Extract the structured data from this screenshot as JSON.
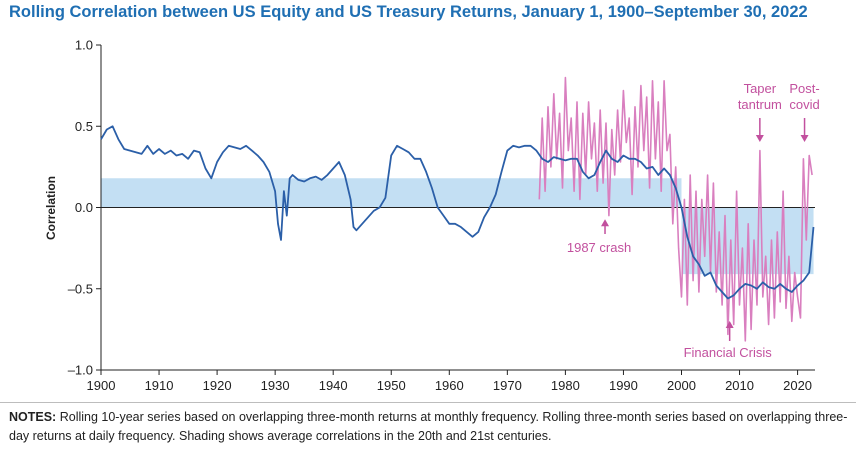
{
  "title": "Rolling Correlation between US Equity and US Treasury Returns, January 1, 1900–September 30, 2022",
  "notes_label": "NOTES:",
  "notes_text": "Rolling 10-year series based on overlapping three-month returns at monthly frequency. Rolling three-month series based on overlapping three-day returns at daily frequency. Shading shows average correlations in the 20th and 21st centuries.",
  "colors": {
    "title": "#1f6fb3",
    "ten_year": "#2b5fa8",
    "three_month": "#d97fbf",
    "shading": "#c3dff3",
    "annotation": "#c2509e"
  },
  "chart_data": {
    "type": "line",
    "title": "Rolling Correlation between US Equity and US Treasury Returns, January 1, 1900–September 30, 2022",
    "xlabel": "",
    "ylabel": "Correlation",
    "xlim": [
      1900,
      2023
    ],
    "ylim": [
      -1.0,
      1.0
    ],
    "x_ticks": [
      1900,
      1910,
      1920,
      1930,
      1940,
      1950,
      1960,
      1970,
      1980,
      1990,
      2000,
      2010,
      2020
    ],
    "y_ticks": [
      1.0,
      0.5,
      0.0,
      -0.5,
      -1.0
    ],
    "y_tick_labels": [
      "1.0",
      "0.5",
      "0.0",
      "–0.5",
      "–1.0"
    ],
    "shading": [
      {
        "from": 1900,
        "to": 2000,
        "value": 0.18
      },
      {
        "from": 2000,
        "to": 2022.75,
        "value": -0.41
      }
    ],
    "series": [
      {
        "name": "Rolling 10-year correlation",
        "x": [
          1900,
          1901,
          1902,
          1903,
          1904,
          1905,
          1906,
          1907,
          1908,
          1909,
          1910,
          1911,
          1912,
          1913,
          1914,
          1915,
          1916,
          1917,
          1918,
          1919,
          1920,
          1921,
          1922,
          1923,
          1924,
          1925,
          1926,
          1927,
          1928,
          1929,
          1930,
          1930.5,
          1931,
          1931.5,
          1932,
          1932.5,
          1933,
          1934,
          1935,
          1936,
          1937,
          1938,
          1939,
          1940,
          1941,
          1942,
          1943,
          1943.5,
          1944,
          1945,
          1946,
          1947,
          1948,
          1949,
          1950,
          1951,
          1952,
          1953,
          1954,
          1955,
          1956,
          1957,
          1958,
          1959,
          1960,
          1961,
          1962,
          1963,
          1964,
          1965,
          1966,
          1967,
          1968,
          1969,
          1970,
          1971,
          1972,
          1973,
          1974,
          1975,
          1976,
          1977,
          1978,
          1979,
          1980,
          1981,
          1982,
          1983,
          1984,
          1985,
          1986,
          1987,
          1988,
          1989,
          1990,
          1991,
          1992,
          1993,
          1994,
          1995,
          1996,
          1997,
          1998,
          1999,
          2000,
          2001,
          2002,
          2003,
          2004,
          2005,
          2006,
          2007,
          2008,
          2009,
          2010,
          2011,
          2012,
          2013,
          2014,
          2015,
          2016,
          2017,
          2018,
          2019,
          2020,
          2021,
          2022,
          2022.75
        ],
        "values": [
          0.42,
          0.48,
          0.5,
          0.42,
          0.36,
          0.35,
          0.34,
          0.33,
          0.38,
          0.33,
          0.36,
          0.33,
          0.35,
          0.32,
          0.33,
          0.3,
          0.35,
          0.34,
          0.24,
          0.18,
          0.28,
          0.34,
          0.38,
          0.37,
          0.36,
          0.38,
          0.35,
          0.32,
          0.28,
          0.22,
          0.1,
          -0.1,
          -0.2,
          0.1,
          -0.05,
          0.18,
          0.2,
          0.17,
          0.16,
          0.18,
          0.19,
          0.17,
          0.2,
          0.24,
          0.28,
          0.2,
          0.05,
          -0.12,
          -0.14,
          -0.1,
          -0.06,
          -0.02,
          0.0,
          0.06,
          0.32,
          0.38,
          0.36,
          0.34,
          0.3,
          0.3,
          0.22,
          0.12,
          0.0,
          -0.05,
          -0.1,
          -0.1,
          -0.12,
          -0.15,
          -0.18,
          -0.15,
          -0.06,
          0.0,
          0.08,
          0.22,
          0.35,
          0.38,
          0.37,
          0.38,
          0.38,
          0.35,
          0.3,
          0.28,
          0.31,
          0.3,
          0.29,
          0.3,
          0.3,
          0.22,
          0.18,
          0.2,
          0.28,
          0.35,
          0.3,
          0.28,
          0.32,
          0.3,
          0.3,
          0.28,
          0.24,
          0.25,
          0.2,
          0.24,
          0.2,
          0.12,
          0.0,
          -0.18,
          -0.3,
          -0.35,
          -0.42,
          -0.4,
          -0.48,
          -0.52,
          -0.56,
          -0.54,
          -0.5,
          -0.47,
          -0.48,
          -0.5,
          -0.46,
          -0.49,
          -0.5,
          -0.47,
          -0.5,
          -0.52,
          -0.48,
          -0.45,
          -0.4,
          -0.12
        ]
      },
      {
        "name": "Rolling three-month correlation",
        "x": [
          1975.5,
          1976,
          1976.5,
          1977,
          1977.5,
          1978,
          1978.5,
          1979,
          1979.5,
          1980,
          1980.5,
          1981,
          1981.5,
          1982,
          1982.5,
          1983,
          1983.5,
          1984,
          1984.5,
          1985,
          1985.5,
          1986,
          1986.5,
          1987,
          1987.5,
          1988,
          1988.5,
          1989,
          1989.5,
          1990,
          1990.5,
          1991,
          1991.5,
          1992,
          1992.5,
          1993,
          1993.5,
          1994,
          1994.5,
          1995,
          1995.5,
          1996,
          1996.5,
          1997,
          1997.5,
          1998,
          1998.5,
          1999,
          1999.5,
          2000,
          2000.5,
          2001,
          2001.5,
          2002,
          2002.5,
          2003,
          2003.5,
          2004,
          2004.5,
          2005,
          2005.5,
          2006,
          2006.5,
          2007,
          2007.5,
          2008,
          2008.5,
          2009,
          2009.5,
          2010,
          2010.5,
          2011,
          2011.5,
          2012,
          2012.5,
          2013,
          2013.5,
          2014,
          2014.5,
          2015,
          2015.5,
          2016,
          2016.5,
          2017,
          2017.5,
          2018,
          2018.5,
          2019,
          2019.5,
          2020,
          2020.5,
          2021,
          2021.5,
          2022,
          2022.5
        ],
        "values": [
          0.05,
          0.55,
          0.1,
          0.62,
          0.25,
          0.7,
          0.3,
          0.58,
          0.12,
          0.8,
          0.35,
          0.55,
          0.1,
          0.65,
          0.05,
          0.58,
          0.2,
          0.65,
          0.3,
          0.52,
          0.1,
          0.6,
          0.15,
          0.52,
          -0.05,
          0.48,
          0.2,
          0.6,
          0.28,
          0.72,
          0.4,
          0.55,
          0.08,
          0.62,
          0.25,
          0.75,
          0.35,
          0.68,
          0.12,
          0.78,
          0.3,
          0.65,
          0.1,
          0.78,
          0.35,
          0.45,
          -0.1,
          0.25,
          -0.25,
          -0.55,
          0.05,
          -0.6,
          0.2,
          -0.45,
          0.1,
          -0.52,
          0.05,
          -0.3,
          0.2,
          -0.4,
          0.15,
          -0.52,
          -0.15,
          -0.6,
          -0.05,
          -0.78,
          -0.2,
          -0.72,
          0.1,
          -0.6,
          -0.25,
          -0.82,
          -0.1,
          -0.75,
          -0.2,
          -0.6,
          0.35,
          -0.55,
          -0.3,
          -0.72,
          -0.2,
          -0.68,
          -0.15,
          -0.58,
          0.1,
          -0.62,
          -0.3,
          -0.7,
          -0.4,
          -0.55,
          -0.68,
          0.3,
          -0.2,
          0.32,
          0.2
        ]
      }
    ],
    "annotations": [
      {
        "text": "1987 crash",
        "x": 1987,
        "y": -0.06
      },
      {
        "text": "Financial Crisis",
        "x": 2008.3,
        "y": -0.68
      },
      {
        "line1": "Taper",
        "line2": "tantrum",
        "x": 2013.5,
        "y": 0.45
      },
      {
        "line1": "Post-",
        "line2": "covid",
        "x": 2021.2,
        "y": 0.45
      }
    ]
  }
}
